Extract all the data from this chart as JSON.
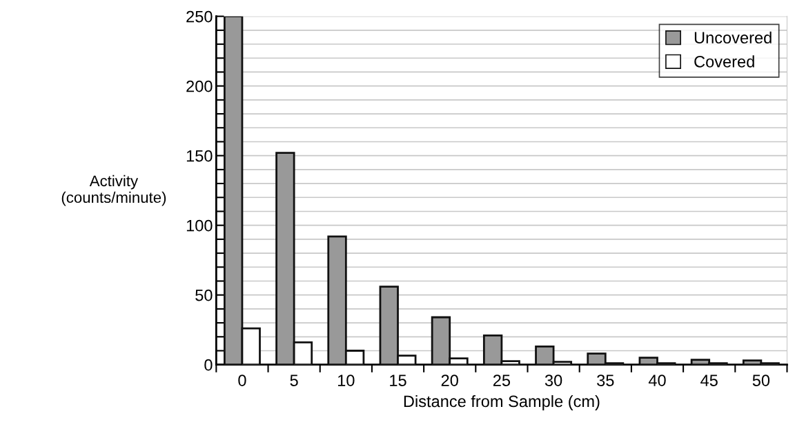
{
  "chart_data": {
    "type": "bar",
    "xlabel": "Distance from Sample (cm)",
    "ylabel": "Activity\n(counts/minute)",
    "categories": [
      "0",
      "5",
      "10",
      "15",
      "20",
      "25",
      "30",
      "35",
      "40",
      "45",
      "50"
    ],
    "series": [
      {
        "name": "Uncovered",
        "color": "#999999",
        "values": [
          250,
          152,
          92,
          56,
          34,
          21,
          13,
          8,
          5,
          3.5,
          3
        ]
      },
      {
        "name": "Covered",
        "color": "#ffffff",
        "values": [
          26,
          16,
          10,
          6.5,
          4.5,
          2.5,
          2,
          1,
          1,
          1,
          1
        ]
      }
    ],
    "ylim": [
      0,
      250
    ],
    "yticks": [
      0,
      {
        "value": 10,
        "label": null
      },
      {
        "value": 20,
        "label": null
      },
      {
        "value": 30,
        "label": null
      },
      {
        "value": 40,
        "label": null
      },
      50,
      {
        "value": 60,
        "label": null
      },
      {
        "value": 70,
        "label": null
      },
      {
        "value": 80,
        "label": null
      },
      {
        "value": 90,
        "label": null
      },
      100,
      {
        "value": 110,
        "label": null
      },
      {
        "value": 120,
        "label": null
      },
      {
        "value": 130,
        "label": null
      },
      {
        "value": 140,
        "label": null
      },
      150,
      {
        "value": 160,
        "label": null
      },
      {
        "value": 170,
        "label": null
      },
      {
        "value": 180,
        "label": null
      },
      {
        "value": 190,
        "label": null
      },
      200,
      {
        "value": 210,
        "label": null
      },
      {
        "value": 220,
        "label": null
      },
      {
        "value": 230,
        "label": null
      },
      {
        "value": 240,
        "label": null
      },
      250
    ],
    "grid": "y",
    "legend": "top right"
  }
}
